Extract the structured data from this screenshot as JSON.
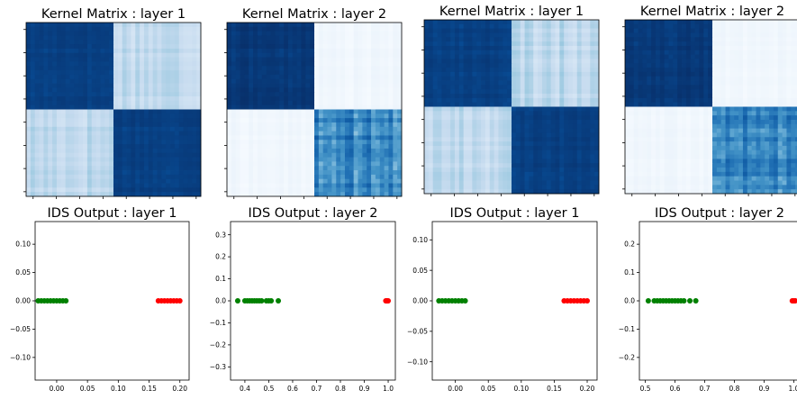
{
  "chart_data": [
    {
      "type": "heatmap",
      "title": "Kernel Matrix : layer 1",
      "block_split": 0.5,
      "diag_level": 0.97,
      "offdiag_level": 0.22,
      "colormap": "Blues"
    },
    {
      "type": "heatmap",
      "title": "Kernel Matrix : layer 2",
      "block_split": 0.5,
      "diag_level": [
        1.0,
        0.85
      ],
      "offdiag_level": 0.02,
      "colormap": "Blues"
    },
    {
      "type": "heatmap",
      "title": "Kernel Matrix : layer 1",
      "block_split": 0.5,
      "diag_level": 0.97,
      "offdiag_level": 0.22,
      "colormap": "Blues"
    },
    {
      "type": "heatmap",
      "title": "Kernel Matrix : layer 2",
      "block_split": 0.5,
      "diag_level": [
        1.0,
        0.85
      ],
      "offdiag_level": 0.02,
      "colormap": "Blues"
    },
    {
      "type": "scatter",
      "title": "IDS Output : layer 1",
      "xlim": [
        -0.035,
        0.215
      ],
      "ylim": [
        -0.14,
        0.14
      ],
      "xticks": [
        0.0,
        0.05,
        0.1,
        0.15,
        0.2
      ],
      "xtick_labels": [
        "0.00",
        "0.05",
        "0.10",
        "0.15",
        "0.20"
      ],
      "yticks": [
        -0.1,
        -0.05,
        0.0,
        0.05,
        0.1
      ],
      "ytick_labels": [
        "−0.10",
        "−0.05",
        "0.00",
        "0.05",
        "0.10"
      ],
      "series": [
        {
          "color": "#008000",
          "x": [
            -0.03,
            -0.025,
            -0.02,
            -0.015,
            -0.01,
            -0.005,
            0.0,
            0.005,
            0.01,
            0.015
          ],
          "y": [
            0,
            0,
            0,
            0,
            0,
            0,
            0,
            0,
            0,
            0
          ]
        },
        {
          "color": "#ff0000",
          "x": [
            0.165,
            0.17,
            0.175,
            0.18,
            0.185,
            0.19,
            0.195,
            0.2
          ],
          "y": [
            0,
            0,
            0,
            0,
            0,
            0,
            0,
            0
          ]
        }
      ]
    },
    {
      "type": "scatter",
      "title": "IDS Output : layer 2",
      "xlim": [
        0.34,
        1.03
      ],
      "ylim": [
        -0.36,
        0.36
      ],
      "xticks": [
        0.4,
        0.5,
        0.6,
        0.7,
        0.8,
        0.9,
        1.0
      ],
      "xtick_labels": [
        "0.4",
        "0.5",
        "0.6",
        "0.7",
        "0.8",
        "0.9",
        "1.0"
      ],
      "yticks": [
        -0.3,
        -0.2,
        -0.1,
        0.0,
        0.1,
        0.2,
        0.3
      ],
      "ytick_labels": [
        "−0.3",
        "−0.2",
        "−0.1",
        "0.0",
        "0.1",
        "0.2",
        "0.3"
      ],
      "series": [
        {
          "color": "#008000",
          "x": [
            0.37,
            0.4,
            0.41,
            0.42,
            0.43,
            0.44,
            0.45,
            0.46,
            0.47,
            0.49,
            0.5,
            0.51,
            0.54
          ],
          "y": [
            0,
            0,
            0,
            0,
            0,
            0,
            0,
            0,
            0,
            0,
            0,
            0,
            0
          ]
        },
        {
          "color": "#ff0000",
          "x": [
            0.99,
            0.995,
            1.0
          ],
          "y": [
            0,
            0,
            0
          ]
        }
      ]
    },
    {
      "type": "scatter",
      "title": "IDS Output : layer 1",
      "xlim": [
        -0.035,
        0.215
      ],
      "ylim": [
        -0.13,
        0.13
      ],
      "xticks": [
        0.0,
        0.05,
        0.1,
        0.15,
        0.2
      ],
      "xtick_labels": [
        "0.00",
        "0.05",
        "0.10",
        "0.15",
        "0.20"
      ],
      "yticks": [
        -0.1,
        -0.05,
        0.0,
        0.05,
        0.1
      ],
      "ytick_labels": [
        "−0.10",
        "−0.05",
        "0.00",
        "0.05",
        "0.10"
      ],
      "series": [
        {
          "color": "#008000",
          "x": [
            -0.025,
            -0.02,
            -0.015,
            -0.01,
            -0.005,
            0.0,
            0.005,
            0.01,
            0.015
          ],
          "y": [
            0,
            0,
            0,
            0,
            0,
            0,
            0,
            0,
            0
          ]
        },
        {
          "color": "#ff0000",
          "x": [
            0.165,
            0.17,
            0.175,
            0.18,
            0.185,
            0.19,
            0.195,
            0.2
          ],
          "y": [
            0,
            0,
            0,
            0,
            0,
            0,
            0,
            0
          ]
        }
      ]
    },
    {
      "type": "scatter",
      "title": "IDS Output : layer 2",
      "xlim": [
        0.48,
        1.02
      ],
      "ylim": [
        -0.28,
        0.28
      ],
      "xticks": [
        0.5,
        0.6,
        0.7,
        0.8,
        0.9,
        1.0
      ],
      "xtick_labels": [
        "0.5",
        "0.6",
        "0.7",
        "0.8",
        "0.9",
        "1.0"
      ],
      "yticks": [
        -0.2,
        -0.1,
        0.0,
        0.1,
        0.2
      ],
      "ytick_labels": [
        "−0.2",
        "−0.1",
        "0.0",
        "0.1",
        "0.2"
      ],
      "series": [
        {
          "color": "#008000",
          "x": [
            0.51,
            0.53,
            0.54,
            0.55,
            0.56,
            0.57,
            0.58,
            0.59,
            0.6,
            0.61,
            0.62,
            0.63,
            0.65,
            0.67
          ],
          "y": [
            0,
            0,
            0,
            0,
            0,
            0,
            0,
            0,
            0,
            0,
            0,
            0,
            0,
            0
          ]
        },
        {
          "color": "#ff0000",
          "x": [
            0.995,
            1.0,
            1.005
          ],
          "y": [
            0,
            0,
            0
          ]
        }
      ]
    }
  ]
}
